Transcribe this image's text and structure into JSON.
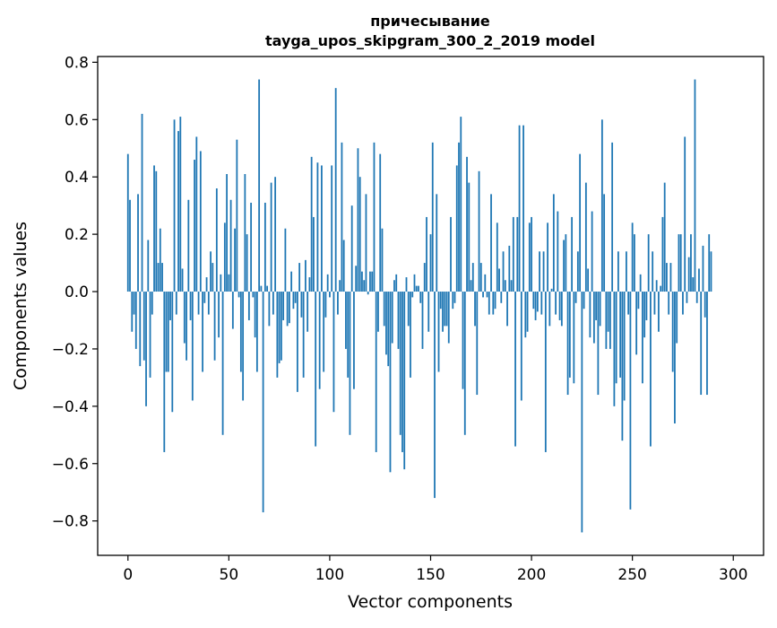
{
  "chart_data": {
    "type": "bar",
    "title_line1": "причесывание",
    "title_line2": "tayga_upos_skipgram_300_2_2019 model",
    "xlabel": "Vector components",
    "ylabel": "Components values",
    "xlim": [
      -15,
      315
    ],
    "ylim": [
      -0.92,
      0.82
    ],
    "xticks": [
      0,
      50,
      100,
      150,
      200,
      250,
      300
    ],
    "yticks": [
      -0.8,
      -0.6,
      -0.4,
      -0.2,
      0.0,
      0.2,
      0.4,
      0.6,
      0.8
    ],
    "ytick_labels": [
      "−0.8",
      "−0.6",
      "−0.4",
      "−0.2",
      "0.0",
      "0.2",
      "0.4",
      "0.6",
      "0.8"
    ],
    "bar_color": "#1f77b4",
    "grid": false,
    "values": [
      0.48,
      0.32,
      -0.14,
      -0.08,
      -0.2,
      0.34,
      -0.26,
      0.62,
      -0.24,
      -0.4,
      0.18,
      -0.3,
      -0.08,
      0.44,
      0.42,
      0.1,
      0.22,
      0.1,
      -0.56,
      -0.28,
      -0.28,
      -0.1,
      -0.42,
      0.6,
      -0.08,
      0.56,
      0.61,
      0.08,
      -0.18,
      -0.24,
      0.32,
      -0.1,
      -0.38,
      0.46,
      0.54,
      -0.08,
      0.49,
      -0.28,
      -0.04,
      0.05,
      -0.08,
      0.14,
      0.1,
      -0.24,
      0.36,
      -0.16,
      0.06,
      -0.5,
      0.24,
      0.41,
      0.06,
      0.32,
      -0.13,
      0.22,
      0.53,
      -0.02,
      -0.28,
      -0.38,
      0.41,
      0.2,
      -0.1,
      0.31,
      -0.02,
      -0.16,
      -0.28,
      0.74,
      0.02,
      -0.77,
      0.31,
      0.02,
      -0.12,
      0.38,
      -0.08,
      0.4,
      -0.3,
      -0.25,
      -0.24,
      -0.1,
      0.22,
      -0.12,
      -0.11,
      0.07,
      -0.06,
      -0.04,
      -0.35,
      0.1,
      -0.09,
      -0.3,
      0.11,
      -0.14,
      0.05,
      0.47,
      0.26,
      -0.54,
      0.45,
      -0.34,
      0.44,
      -0.28,
      -0.09,
      0.06,
      -0.02,
      0.44,
      -0.42,
      0.71,
      -0.08,
      0.04,
      0.52,
      0.18,
      -0.2,
      -0.3,
      -0.5,
      0.3,
      -0.34,
      0.09,
      0.5,
      0.4,
      0.07,
      0.04,
      0.34,
      -0.01,
      0.07,
      0.07,
      0.52,
      -0.56,
      -0.14,
      0.48,
      0.22,
      -0.12,
      -0.22,
      -0.26,
      -0.63,
      -0.18,
      0.04,
      0.06,
      -0.2,
      -0.5,
      -0.56,
      -0.62,
      0.05,
      -0.12,
      -0.3,
      -0.02,
      0.06,
      0.02,
      0.02,
      -0.04,
      -0.2,
      0.1,
      0.26,
      -0.14,
      0.2,
      0.52,
      -0.72,
      0.34,
      -0.28,
      -0.06,
      -0.14,
      -0.12,
      -0.12,
      -0.18,
      0.26,
      -0.06,
      -0.04,
      0.44,
      0.52,
      0.61,
      -0.34,
      -0.5,
      0.47,
      0.38,
      0.04,
      0.1,
      -0.12,
      -0.36,
      0.42,
      0.1,
      -0.02,
      0.06,
      -0.02,
      -0.08,
      0.34,
      -0.08,
      -0.06,
      0.24,
      0.08,
      -0.04,
      0.14,
      0.04,
      -0.12,
      0.16,
      0.04,
      0.26,
      -0.54,
      0.26,
      0.58,
      -0.38,
      0.58,
      -0.16,
      -0.14,
      0.24,
      0.26,
      -0.06,
      -0.1,
      -0.07,
      0.14,
      -0.08,
      0.14,
      -0.56,
      0.24,
      -0.12,
      0.01,
      0.34,
      -0.08,
      0.28,
      -0.1,
      -0.12,
      0.18,
      0.2,
      -0.36,
      -0.3,
      0.26,
      -0.32,
      -0.04,
      0.14,
      0.48,
      -0.84,
      -0.06,
      0.38,
      0.08,
      -0.16,
      0.28,
      -0.18,
      -0.1,
      -0.36,
      -0.12,
      0.6,
      0.34,
      -0.2,
      -0.14,
      -0.2,
      0.52,
      -0.4,
      -0.32,
      0.14,
      -0.3,
      -0.52,
      -0.38,
      0.14,
      -0.08,
      -0.76,
      0.24,
      0.2,
      -0.22,
      -0.06,
      0.06,
      -0.32,
      -0.16,
      -0.1,
      0.2,
      -0.54,
      0.14,
      -0.08,
      0.04,
      -0.14,
      0.02,
      0.26,
      0.38,
      0.1,
      -0.08,
      0.1,
      -0.28,
      -0.46,
      -0.18,
      0.2,
      0.2,
      -0.08,
      0.54,
      -0.04,
      0.12,
      0.2,
      0.05,
      0.74,
      -0.04,
      0.08,
      -0.36,
      0.16,
      -0.09,
      -0.36,
      0.2,
      0.14
    ]
  }
}
